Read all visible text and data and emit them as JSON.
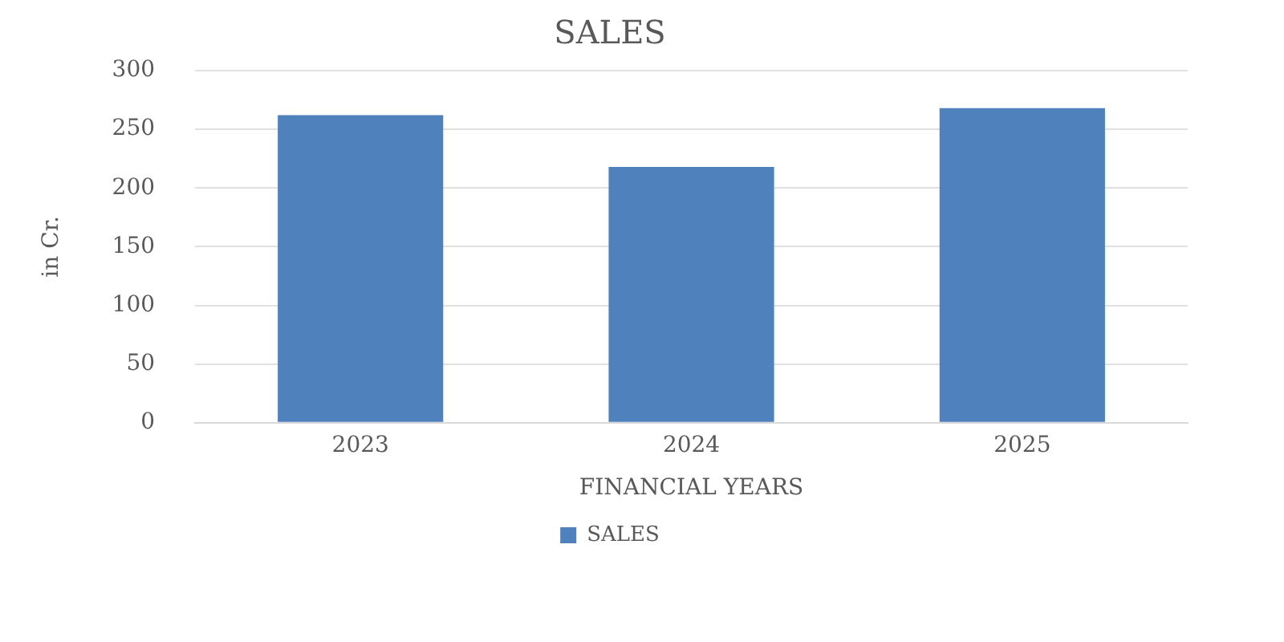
{
  "chart_data": {
    "type": "bar",
    "title": "SALES",
    "xlabel": "FINANCIAL YEARS",
    "ylabel": "in Cr.",
    "categories": [
      "2023",
      "2024",
      "2025"
    ],
    "series": [
      {
        "name": "SALES",
        "color": "#4f81bd",
        "values": [
          262,
          218,
          268
        ]
      }
    ],
    "ylim": [
      0,
      300
    ],
    "yticks": [
      0,
      50,
      100,
      150,
      200,
      250,
      300
    ],
    "grid": "y",
    "legend": "bottom"
  }
}
